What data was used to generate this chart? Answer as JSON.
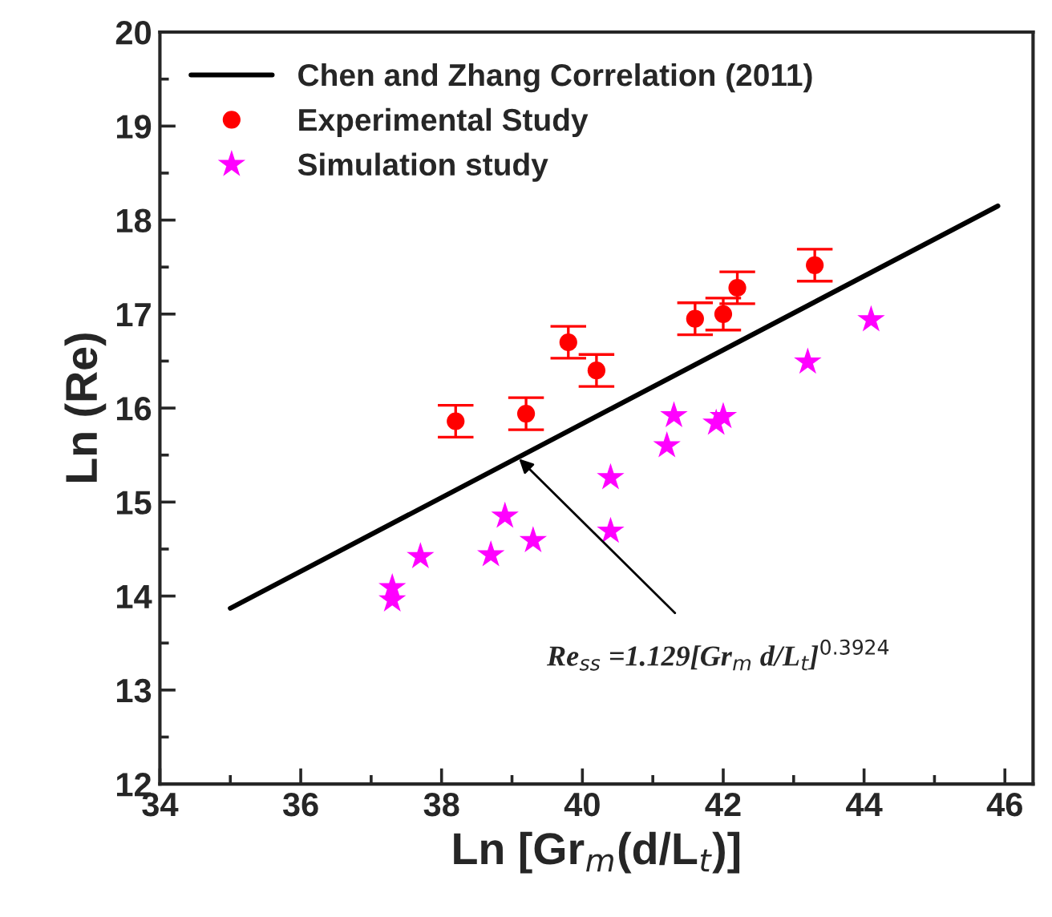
{
  "chart_data": {
    "type": "scatter",
    "xlabel": "Ln [Gr$_{m}$(d/L$_{t}$)]",
    "ylabel": "Ln (Re)",
    "xlim": [
      34,
      46.4
    ],
    "xticks": [
      34,
      36,
      38,
      40,
      42,
      44,
      46
    ],
    "ylim": [
      12,
      20
    ],
    "yticks": [
      12,
      13,
      14,
      15,
      16,
      17,
      18,
      19,
      20
    ],
    "grid": false,
    "legend": "top left",
    "series": [
      {
        "name": "Chen and Zhang Correlation (2011)",
        "type": "line",
        "color": "#000000",
        "marker": "none",
        "line_style": "solid",
        "x": [
          35,
          45.9
        ],
        "values": [
          13.87,
          18.15
        ]
      },
      {
        "name": "Experimental Study",
        "color": "#ff0000",
        "marker": "circle",
        "x": [
          38.2,
          39.2,
          39.8,
          40.2,
          41.6,
          42.0,
          42.2,
          43.3
        ],
        "values": [
          15.86,
          15.94,
          16.7,
          16.4,
          16.95,
          17.0,
          17.28,
          17.52
        ],
        "errors": [
          0.17,
          0.17,
          0.17,
          0.17,
          0.17,
          0.17,
          0.17,
          0.17
        ]
      },
      {
        "name": "Simulation study",
        "color": "#ff00ff",
        "marker": "star",
        "x": [
          37.3,
          37.3,
          37.7,
          38.7,
          38.9,
          39.3,
          40.4,
          40.4,
          41.2,
          41.3,
          41.9,
          42.0,
          43.2,
          44.1
        ],
        "values": [
          14.09,
          13.96,
          14.42,
          14.44,
          14.85,
          14.59,
          15.26,
          14.69,
          15.6,
          15.92,
          15.84,
          15.91,
          16.49,
          16.94
        ]
      }
    ],
    "annotations": [
      {
        "text": "Re$_{ss}$ =1.129[Gr$_{m}$ d/L$_{t}$]$^{0.3924}$",
        "x": 39.1,
        "y": 15.46
      }
    ]
  }
}
